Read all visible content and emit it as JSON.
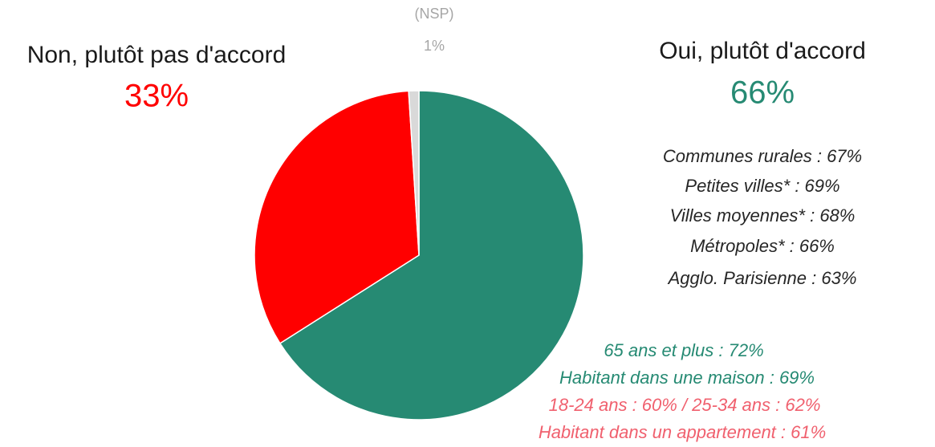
{
  "chart_data": {
    "type": "pie",
    "categories": [
      "Oui, plutôt d'accord",
      "Non, plutôt pas d'accord",
      "(NSP)"
    ],
    "values": [
      66,
      33,
      1
    ],
    "value_labels": [
      "66%",
      "33%",
      "1%"
    ],
    "colors": [
      "#268a73",
      "#ff0000",
      "#d9d9d9"
    ],
    "label_colors": [
      "#268a73",
      "#ff0000",
      "#a6a6a6"
    ],
    "annotations": [
      {
        "text": "Communes rurales : 67%",
        "color": "#262626"
      },
      {
        "text": "Petites villes* : 69%",
        "color": "#262626"
      },
      {
        "text": "Villes moyennes* : 68%",
        "color": "#262626"
      },
      {
        "text": "Métropoles* : 66%",
        "color": "#262626"
      },
      {
        "text": "Agglo. Parisienne : 63%",
        "color": "#262626"
      },
      {
        "text": "65 ans et plus : 72%",
        "color": "#268a73"
      },
      {
        "text": "Habitant dans une maison : 69%",
        "color": "#268a73"
      },
      {
        "text": "18-24 ans : 60% / 25-34 ans : 62%",
        "color": "#f0606e"
      },
      {
        "text": "Habitant dans un appartement : 61%",
        "color": "#f0606e"
      }
    ]
  }
}
